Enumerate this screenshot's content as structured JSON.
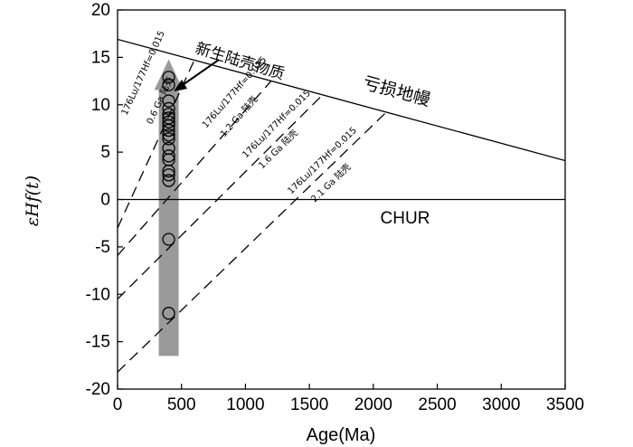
{
  "chart_data": {
    "type": "scatter",
    "xlabel": "Age(Ma)",
    "ylabel": "εHf(t)",
    "xlim": [
      0,
      3500
    ],
    "ylim": [
      -20,
      20
    ],
    "xticks": [
      0,
      500,
      1000,
      1500,
      2000,
      2500,
      3000,
      3500
    ],
    "yticks": [
      -20,
      -15,
      -10,
      -5,
      0,
      5,
      10,
      15,
      20
    ],
    "xtick_labels": [
      "0",
      "500",
      "1000",
      "1500",
      "2000",
      "2500",
      "3000",
      "3500"
    ],
    "ytick_labels": [
      "-20",
      "-15",
      "-10",
      "-5",
      "0",
      "5",
      "10",
      "15",
      "20"
    ],
    "grid": false,
    "points": [
      {
        "x": 400,
        "y": 12.9
      },
      {
        "x": 400,
        "y": 12.1
      },
      {
        "x": 400,
        "y": 10.4
      },
      {
        "x": 400,
        "y": 9.6
      },
      {
        "x": 400,
        "y": 9.0
      },
      {
        "x": 400,
        "y": 8.6
      },
      {
        "x": 400,
        "y": 8.2
      },
      {
        "x": 400,
        "y": 7.8
      },
      {
        "x": 400,
        "y": 7.3
      },
      {
        "x": 400,
        "y": 6.8
      },
      {
        "x": 400,
        "y": 6.4
      },
      {
        "x": 400,
        "y": 5.4
      },
      {
        "x": 400,
        "y": 4.6
      },
      {
        "x": 400,
        "y": 4.2
      },
      {
        "x": 400,
        "y": 3.0
      },
      {
        "x": 400,
        "y": 2.6
      },
      {
        "x": 400,
        "y": 2.0
      },
      {
        "x": 400,
        "y": -4.2
      },
      {
        "x": 400,
        "y": -12.0
      }
    ],
    "reference_lines": [
      {
        "label": "亏损地幔",
        "x": [
          0,
          3500
        ],
        "y": [
          16.9,
          4.1
        ],
        "style": "solid"
      },
      {
        "label": "CHUR",
        "x": [
          0,
          3500
        ],
        "y": [
          0,
          0
        ],
        "style": "solid"
      },
      {
        "label_lines": [
          "176Lu/177Hf=0.015",
          "0.6 Ga 陆壳"
        ],
        "x": [
          0,
          600
        ],
        "y": [
          -3.0,
          14.7
        ],
        "style": "dashed"
      },
      {
        "label_lines": [
          "176Lu/177Hf=0.015",
          "1.2 Ga 陆壳"
        ],
        "x": [
          0,
          1200
        ],
        "y": [
          -5.9,
          12.5
        ],
        "style": "dashed"
      },
      {
        "label_lines": [
          "176Lu/177Hf=0.015",
          "1.6 Ga 陆壳"
        ],
        "x": [
          0,
          1600
        ],
        "y": [
          -10.5,
          11.0
        ],
        "style": "dashed"
      },
      {
        "label_lines": [
          "176Lu/177Hf=0.015",
          "2.1 Ga 陆壳"
        ],
        "x": [
          0,
          2100
        ],
        "y": [
          -18.2,
          9.2
        ],
        "style": "dashed"
      }
    ],
    "trend_arrow": {
      "x": 400,
      "y_from": -16.5,
      "y_to": 14.8,
      "color": "#9a9a9a"
    },
    "annotation": {
      "text": "新生陆壳物质",
      "color": "#000000"
    }
  }
}
